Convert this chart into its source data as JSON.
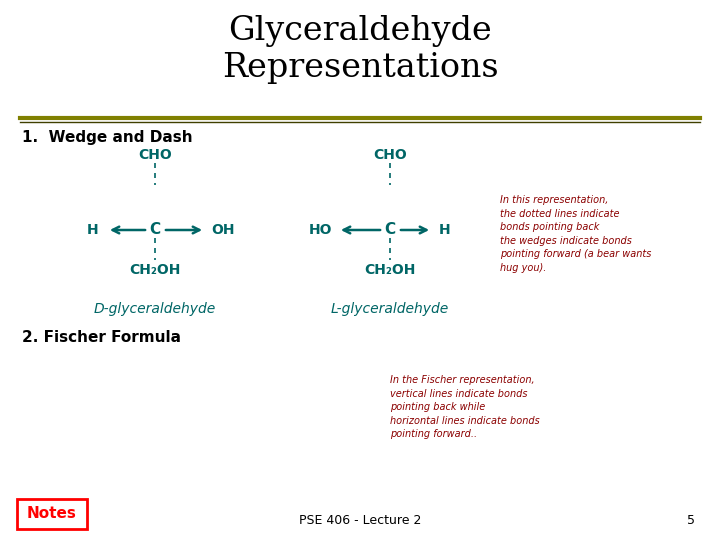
{
  "title": "Glyceraldehyde\nRepresentations",
  "title_color": "#000000",
  "title_fontsize": 24,
  "bg_color": "#ffffff",
  "teal_color": "#006666",
  "dark_red_color": "#8B0000",
  "sep_color1": "#808000",
  "sep_color2": "#404000",
  "section1_label": "1.  Wedge and Dash",
  "section2_label": "2. Fischer Formula",
  "d_label": "D-glyceraldehyde",
  "l_label": "L-glyceraldehyde",
  "note_label": "Notes",
  "footer_label": "PSE 406 - Lecture 2",
  "page_num": "5",
  "annotation1": "In this representation,\nthe dotted lines indicate\nbonds pointing back\nthe wedges indicate bonds\npointing forward (a bear wants\nhug you).",
  "annotation2": "In the Fischer representation,\nvertical lines indicate bonds\npointing back while\nhorizontal lines indicate bonds\npointing forward.."
}
